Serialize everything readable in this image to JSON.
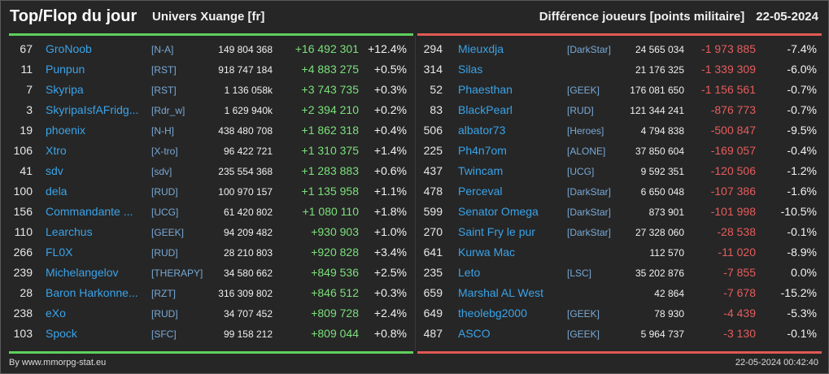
{
  "header": {
    "title": "Top/Flop du jour",
    "universe": "Univers Xuange [fr]",
    "metric": "Différence joueurs [points militaire]",
    "date": "22-05-2024"
  },
  "colors": {
    "top_accent": "#5ed15e",
    "flop_accent": "#e05a54",
    "name_color": "#3aa3e8",
    "background": "#262626"
  },
  "top": [
    {
      "rank": "67",
      "name": "GroNoob",
      "alliance": "[N-A]",
      "points": "149 804 368",
      "diff": "+16 492 301",
      "pct": "+12.4%"
    },
    {
      "rank": "11",
      "name": "Punpun",
      "alliance": "[RST]",
      "points": "918 747 184",
      "diff": "+4 883 275",
      "pct": "+0.5%"
    },
    {
      "rank": "7",
      "name": "Skyripa",
      "alliance": "[RST]",
      "points": "1 136 058k",
      "diff": "+3 743 735",
      "pct": "+0.3%"
    },
    {
      "rank": "3",
      "name": "SkyripaIsfAFridg...",
      "alliance": "[Rdr_w]",
      "points": "1 629 940k",
      "diff": "+2 394 210",
      "pct": "+0.2%"
    },
    {
      "rank": "19",
      "name": "phoenix",
      "alliance": "[N-H]",
      "points": "438 480 708",
      "diff": "+1 862 318",
      "pct": "+0.4%"
    },
    {
      "rank": "106",
      "name": "Xtro",
      "alliance": "[X-tro]",
      "points": "96 422 721",
      "diff": "+1 310 375",
      "pct": "+1.4%"
    },
    {
      "rank": "41",
      "name": "sdv",
      "alliance": "[sdv]",
      "points": "235 554 368",
      "diff": "+1 283 883",
      "pct": "+0.6%"
    },
    {
      "rank": "100",
      "name": "dela",
      "alliance": "[RUD]",
      "points": "100 970 157",
      "diff": "+1 135 958",
      "pct": "+1.1%"
    },
    {
      "rank": "156",
      "name": "Commandante ...",
      "alliance": "[UCG]",
      "points": "61 420 802",
      "diff": "+1 080 110",
      "pct": "+1.8%"
    },
    {
      "rank": "110",
      "name": "Learchus",
      "alliance": "[GEEK]",
      "points": "94 209 482",
      "diff": "+930 903",
      "pct": "+1.0%"
    },
    {
      "rank": "266",
      "name": "FL0X",
      "alliance": "[RUD]",
      "points": "28 210 803",
      "diff": "+920 828",
      "pct": "+3.4%"
    },
    {
      "rank": "239",
      "name": "Michelangelov",
      "alliance": "[THERAPY]",
      "points": "34 580 662",
      "diff": "+849 536",
      "pct": "+2.5%"
    },
    {
      "rank": "28",
      "name": "Baron Harkonne...",
      "alliance": "[RZT]",
      "points": "316 309 802",
      "diff": "+846 512",
      "pct": "+0.3%"
    },
    {
      "rank": "238",
      "name": "eXo",
      "alliance": "[RUD]",
      "points": "34 707 452",
      "diff": "+809 728",
      "pct": "+2.4%"
    },
    {
      "rank": "103",
      "name": "Spock",
      "alliance": "[SFC]",
      "points": "99 158 212",
      "diff": "+809 044",
      "pct": "+0.8%"
    }
  ],
  "flop": [
    {
      "rank": "294",
      "name": "Mieuxdja",
      "alliance": "[DarkStar]",
      "points": "24 565 034",
      "diff": "-1 973 885",
      "pct": "-7.4%"
    },
    {
      "rank": "314",
      "name": "Silas",
      "alliance": "",
      "points": "21 176 325",
      "diff": "-1 339 309",
      "pct": "-6.0%"
    },
    {
      "rank": "52",
      "name": "Phaesthan",
      "alliance": "[GEEK]",
      "points": "176 081 650",
      "diff": "-1 156 561",
      "pct": "-0.7%"
    },
    {
      "rank": "83",
      "name": "BlackPearl",
      "alliance": "[RUD]",
      "points": "121 344 241",
      "diff": "-876 773",
      "pct": "-0.7%"
    },
    {
      "rank": "506",
      "name": "albator73",
      "alliance": "[Heroes]",
      "points": "4 794 838",
      "diff": "-500 847",
      "pct": "-9.5%"
    },
    {
      "rank": "225",
      "name": "Ph4n7om",
      "alliance": "[ALONE]",
      "points": "37 850 604",
      "diff": "-169 057",
      "pct": "-0.4%"
    },
    {
      "rank": "437",
      "name": "Twincam",
      "alliance": "[UCG]",
      "points": "9 592 351",
      "diff": "-120 506",
      "pct": "-1.2%"
    },
    {
      "rank": "478",
      "name": "Perceval",
      "alliance": "[DarkStar]",
      "points": "6 650 048",
      "diff": "-107 386",
      "pct": "-1.6%"
    },
    {
      "rank": "599",
      "name": "Senator Omega",
      "alliance": "[DarkStar]",
      "points": "873 901",
      "diff": "-101 998",
      "pct": "-10.5%"
    },
    {
      "rank": "270",
      "name": "Saint Fry le pur",
      "alliance": "[DarkStar]",
      "points": "27 328 060",
      "diff": "-28 538",
      "pct": "-0.1%"
    },
    {
      "rank": "641",
      "name": "Kurwa Mac",
      "alliance": "",
      "points": "112 570",
      "diff": "-11 020",
      "pct": "-8.9%"
    },
    {
      "rank": "235",
      "name": "Leto",
      "alliance": "[LSC]",
      "points": "35 202 876",
      "diff": "-7 855",
      "pct": "0.0%"
    },
    {
      "rank": "659",
      "name": "Marshal AL West",
      "alliance": "",
      "points": "42 864",
      "diff": "-7 678",
      "pct": "-15.2%"
    },
    {
      "rank": "649",
      "name": "theolebg2000",
      "alliance": "[GEEK]",
      "points": "78 930",
      "diff": "-4 439",
      "pct": "-5.3%"
    },
    {
      "rank": "487",
      "name": "ASCO",
      "alliance": "[GEEK]",
      "points": "5 964 737",
      "diff": "-3 130",
      "pct": "-0.1%"
    }
  ],
  "footer": {
    "source": "By www.mmorpg-stat.eu",
    "timestamp": "22-05-2024 00:42:40"
  }
}
